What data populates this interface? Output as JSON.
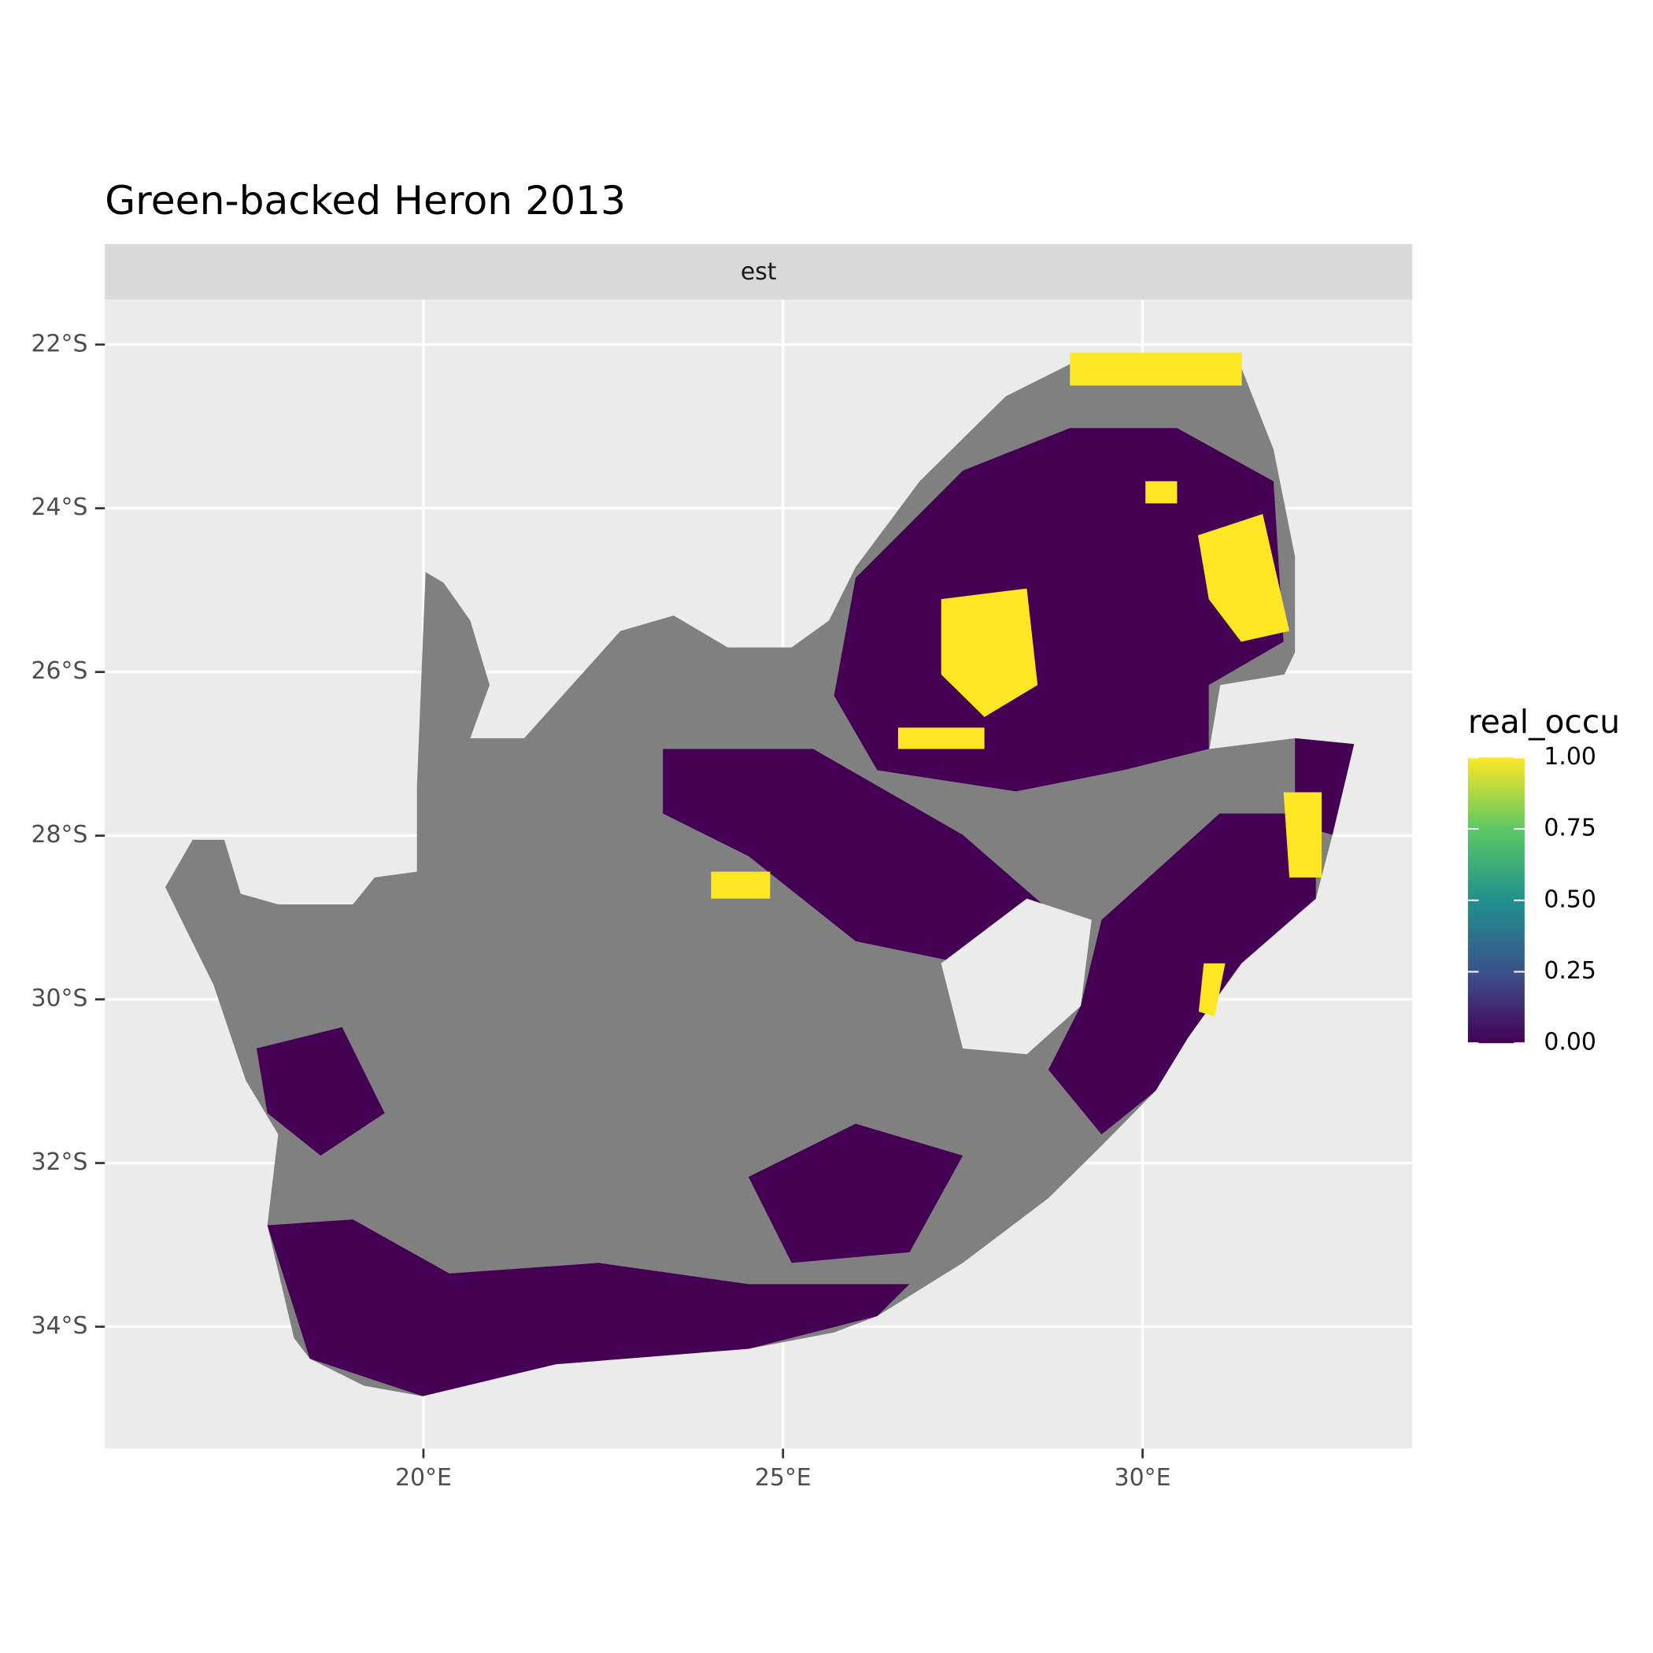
{
  "chart_data": {
    "type": "raster-map",
    "title": "Green-backed Heron 2013",
    "facet": "est",
    "xlim": [
      15.57,
      33.75
    ],
    "ylim": [
      -35.49,
      -21.45
    ],
    "xticks": [
      {
        "value": 20,
        "label": "20°E"
      },
      {
        "value": 25,
        "label": "25°E"
      },
      {
        "value": 30,
        "label": "30°E"
      }
    ],
    "yticks": [
      {
        "value": -22,
        "label": "22°S"
      },
      {
        "value": -24,
        "label": "24°S"
      },
      {
        "value": -26,
        "label": "26°S"
      },
      {
        "value": -28,
        "label": "28°S"
      },
      {
        "value": -30,
        "label": "30°S"
      },
      {
        "value": -32,
        "label": "32°S"
      },
      {
        "value": -34,
        "label": "34°S"
      }
    ],
    "grid": true,
    "na_color": "#808080",
    "land": {
      "lon": [
        16.41,
        16.79,
        17.23,
        17.46,
        17.98,
        19.02,
        19.32,
        19.91,
        19.91,
        20.03,
        20.28,
        20.65,
        20.92,
        20.65,
        21.4,
        22.74,
        23.48,
        24.23,
        25.12,
        25.64,
        26.01,
        26.9,
        27.5,
        28.1,
        28.99,
        29.73,
        30.48,
        31.38,
        31.82,
        32.12,
        32.12,
        31.97,
        31.08,
        30.93,
        32.12,
        32.94,
        32.64,
        32.41,
        31.38,
        30.63,
        30.18,
        29.44,
        28.69,
        27.5,
        26.31,
        25.71,
        24.52,
        23.18,
        21.84,
        20.65,
        19.99,
        19.17,
        18.42,
        18.2,
        17.83,
        17.98,
        17.53,
        17.08,
        16.64
      ],
      "lat": [
        -28.63,
        -28.05,
        -28.05,
        -28.71,
        -28.84,
        -28.84,
        -28.51,
        -28.44,
        -27.4,
        -24.78,
        -24.91,
        -25.37,
        -26.16,
        -26.81,
        -26.81,
        -25.5,
        -25.31,
        -25.7,
        -25.7,
        -25.37,
        -24.72,
        -23.67,
        -23.15,
        -22.63,
        -22.24,
        -22.1,
        -22.3,
        -22.3,
        -23.28,
        -24.59,
        -25.76,
        -26.03,
        -26.16,
        -26.94,
        -26.81,
        -26.88,
        -27.99,
        -28.77,
        -29.56,
        -30.47,
        -31.12,
        -31.78,
        -32.43,
        -33.22,
        -33.87,
        -34.07,
        -34.27,
        -34.14,
        -34.46,
        -34.59,
        -34.85,
        -34.72,
        -34.39,
        -34.14,
        -32.76,
        -31.65,
        -30.99,
        -29.82,
        -29.04
      ]
    },
    "hole": {
      "lon": [
        27.2,
        28.39,
        29.29,
        29.14,
        28.39,
        27.5
      ],
      "lat": [
        -29.56,
        -28.77,
        -29.03,
        -30.08,
        -30.67,
        -30.6
      ]
    },
    "regions": [
      {
        "value": 0,
        "lon": [
          17.83,
          19.02,
          20.36,
          22.44,
          24.52,
          26.76,
          26.31,
          24.52,
          21.84,
          19.99,
          18.42
        ],
        "lat": [
          -32.76,
          -32.69,
          -33.35,
          -33.22,
          -33.48,
          -33.48,
          -33.87,
          -34.27,
          -34.46,
          -34.85,
          -34.39
        ]
      },
      {
        "value": 0,
        "lon": [
          29.43,
          31.07,
          32.41,
          32.41,
          31.37,
          30.63,
          30.18,
          29.43,
          28.69,
          29.14
        ],
        "lat": [
          -29.03,
          -27.73,
          -27.73,
          -28.77,
          -29.56,
          -30.47,
          -31.12,
          -31.65,
          -30.86,
          -30.08
        ]
      },
      {
        "value": 0,
        "lon": [
          26.01,
          27.5,
          28.99,
          30.48,
          31.82,
          31.96,
          30.92,
          30.92,
          29.73,
          28.24,
          26.31,
          25.71
        ],
        "lat": [
          -24.85,
          -23.54,
          -23.02,
          -23.02,
          -23.67,
          -25.63,
          -26.16,
          -26.94,
          -27.2,
          -27.46,
          -27.2,
          -26.29
        ]
      },
      {
        "value": 0,
        "lon": [
          32.12,
          32.94,
          32.64,
          32.12
        ],
        "lat": [
          -26.81,
          -26.88,
          -27.99,
          -27.86
        ]
      },
      {
        "value": 0,
        "lon": [
          23.33,
          25.42,
          27.5,
          28.69,
          27.5,
          26.01,
          24.52,
          23.33
        ],
        "lat": [
          -26.94,
          -26.94,
          -27.99,
          -28.9,
          -29.56,
          -29.29,
          -28.25,
          -27.73
        ]
      },
      {
        "value": 0,
        "lon": [
          17.68,
          18.87,
          19.46,
          18.57,
          17.83
        ],
        "lat": [
          -30.6,
          -30.34,
          -31.39,
          -31.91,
          -31.39
        ]
      },
      {
        "value": 0,
        "lon": [
          24.52,
          26.01,
          27.5,
          26.76,
          25.12
        ],
        "lat": [
          -32.17,
          -31.52,
          -31.91,
          -33.09,
          -33.22
        ]
      },
      {
        "value": 1,
        "lon": [
          27.2,
          28.39,
          28.54,
          27.8,
          27.2
        ],
        "lat": [
          -25.11,
          -24.98,
          -26.16,
          -26.55,
          -26.03
        ]
      },
      {
        "value": 1,
        "lon": [
          30.77,
          31.67,
          32.04,
          31.37,
          30.92
        ],
        "lat": [
          -24.33,
          -24.07,
          -25.5,
          -25.63,
          -25.11
        ]
      },
      {
        "value": 1,
        "lon": [
          30.85,
          31.15,
          31.0,
          30.78
        ],
        "lat": [
          -29.56,
          -29.56,
          -30.21,
          -30.15
        ]
      },
      {
        "value": 1,
        "lon": [
          31.96,
          32.49,
          32.49,
          32.04
        ],
        "lat": [
          -27.47,
          -27.47,
          -28.51,
          -28.51
        ]
      },
      {
        "value": 1,
        "lon": [
          24.0,
          24.82,
          24.82,
          24.0
        ],
        "lat": [
          -28.44,
          -28.44,
          -28.77,
          -28.77
        ]
      },
      {
        "value": 1,
        "lon": [
          26.6,
          27.8,
          27.8,
          26.6
        ],
        "lat": [
          -26.68,
          -26.68,
          -26.94,
          -26.94
        ]
      },
      {
        "value": 1,
        "lon": [
          28.99,
          31.38,
          31.38,
          28.99
        ],
        "lat": [
          -22.1,
          -22.1,
          -22.5,
          -22.5
        ]
      },
      {
        "value": 1,
        "lon": [
          30.04,
          30.48,
          30.48,
          30.04
        ],
        "lat": [
          -23.67,
          -23.67,
          -23.94,
          -23.94
        ]
      }
    ],
    "legend": {
      "title": "real_occu",
      "limits": [
        0,
        1
      ],
      "colors": [
        "#440154",
        "#3B528B",
        "#21908C",
        "#5DC863",
        "#FDE725"
      ],
      "ticks": [
        {
          "value": 0,
          "label": "0.00"
        },
        {
          "value": 0.25,
          "label": "0.25"
        },
        {
          "value": 0.5,
          "label": "0.50"
        },
        {
          "value": 0.75,
          "label": "0.75"
        },
        {
          "value": 1,
          "label": "1.00"
        }
      ]
    }
  }
}
